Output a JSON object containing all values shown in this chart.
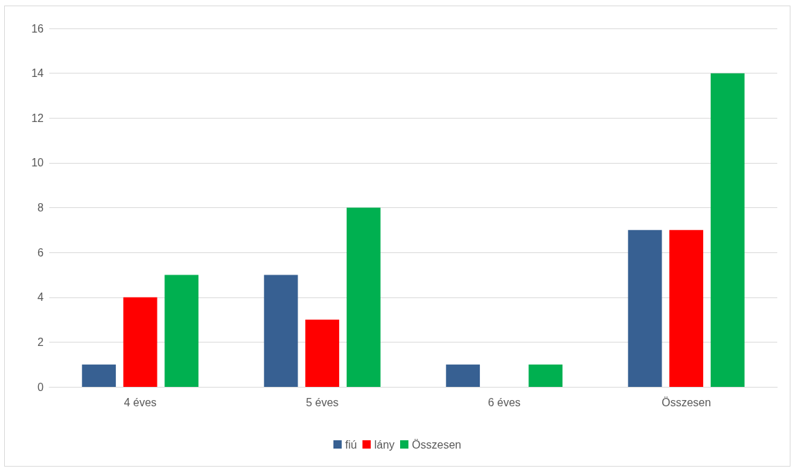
{
  "chart_data": {
    "type": "bar",
    "categories": [
      "4 éves",
      "5 éves",
      "6 éves",
      "Összesen"
    ],
    "series": [
      {
        "name": "fiú",
        "color": "#376092",
        "values": [
          1,
          5,
          1,
          7
        ]
      },
      {
        "name": "lány",
        "color": "#ff0000",
        "values": [
          4,
          3,
          0,
          7
        ]
      },
      {
        "name": "Összesen",
        "color": "#00b050",
        "values": [
          5,
          8,
          1,
          14
        ]
      }
    ],
    "ylim": [
      0,
      16
    ],
    "yticks": [
      0,
      2,
      4,
      6,
      8,
      10,
      12,
      14,
      16
    ],
    "grid": "y",
    "legend": "bottom"
  }
}
